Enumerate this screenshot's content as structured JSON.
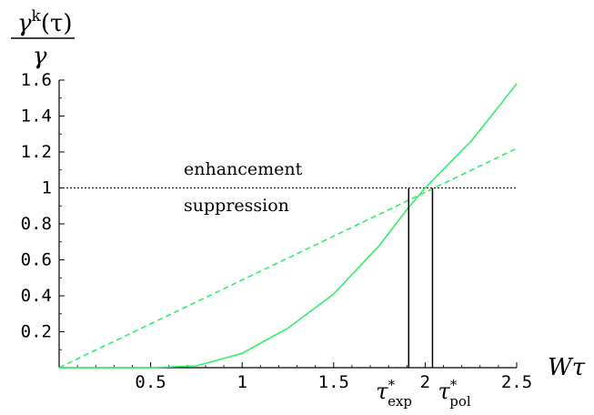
{
  "chart_data": {
    "type": "line",
    "xlabel": "Wτ",
    "ylabel": {
      "numerator": "γ",
      "numerator_sup": "k",
      "numerator_arg": "(τ)",
      "denominator": "γ"
    },
    "xlim": [
      0,
      2.5
    ],
    "ylim": [
      0,
      1.6
    ],
    "x_ticks": [
      0.5,
      1,
      1.5,
      2,
      2.5
    ],
    "x_tick_labels": [
      "0.5",
      "1",
      "1.5",
      "2",
      "2.5"
    ],
    "y_ticks": [
      0.2,
      0.4,
      0.6,
      0.8,
      1,
      1.2,
      1.4,
      1.6
    ],
    "y_tick_labels": [
      "0.2",
      "0.4",
      "0.6",
      "0.8",
      "1",
      "1.2",
      "1.4",
      "1.6"
    ],
    "grid": false,
    "series": [
      {
        "style": "solid",
        "color": "#33ee66",
        "x": [
          0,
          0.25,
          0.5,
          0.75,
          1.0,
          1.25,
          1.5,
          1.75,
          1.9,
          2.0,
          2.25,
          2.4,
          2.5
        ],
        "y": [
          0,
          0,
          0,
          0.01,
          0.08,
          0.22,
          0.41,
          0.68,
          0.88,
          1.0,
          1.26,
          1.45,
          1.58
        ]
      },
      {
        "style": "dashed",
        "color": "#33ee66",
        "x": [
          0,
          2.5
        ],
        "y": [
          0,
          1.22
        ]
      }
    ],
    "reference_line": {
      "y": 1,
      "style": "dotted",
      "color": "#000000"
    },
    "annotations": {
      "above": "enhancement",
      "below": "suppression"
    },
    "markers": [
      {
        "x": 1.91,
        "y": 1,
        "symbol": "τ",
        "sup": "*",
        "sub": "exp"
      },
      {
        "x": 2.04,
        "y": 1,
        "symbol": "τ",
        "sup": "*",
        "sub": "pol"
      }
    ]
  }
}
